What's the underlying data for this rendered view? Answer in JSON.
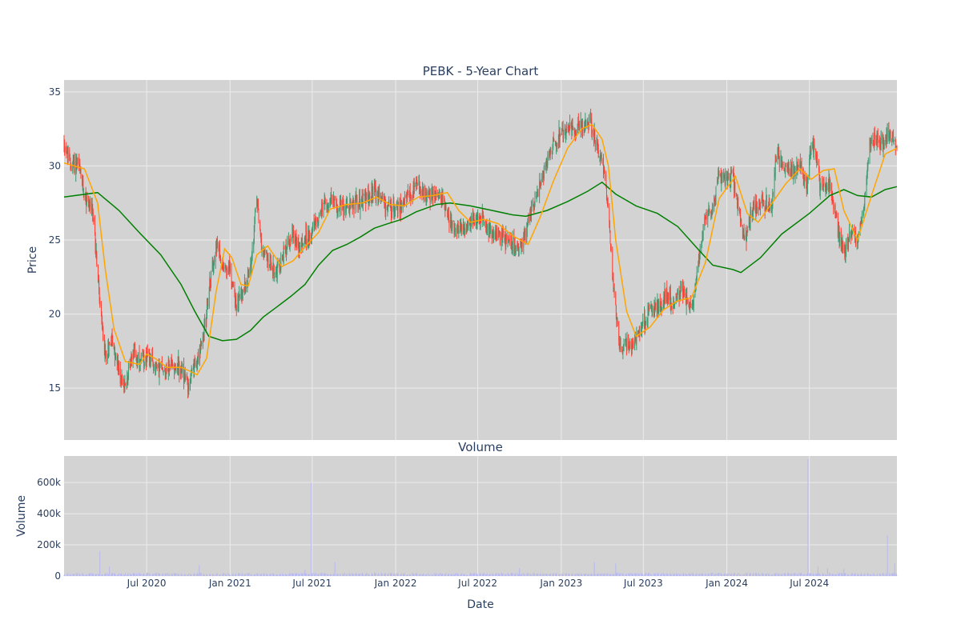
{
  "chart_data": [
    {
      "type": "candlestick",
      "title": "PEBK - 5-Year Chart",
      "ylabel": "Price",
      "ylim": [
        11.5,
        35.8
      ],
      "yticks": [
        15,
        20,
        25,
        30,
        35
      ],
      "xlim": [
        "2020-01-01",
        "2025-01-10"
      ],
      "grid": true,
      "legend": "none",
      "colors": {
        "plot_bg": "#d3d3d3",
        "grid": "#ececec",
        "up": "#3d9970",
        "down": "#ff4136",
        "ma_short": "#ffa500",
        "ma_long": "#008000"
      },
      "close_path": [
        [
          "2020-01-02",
          31.5
        ],
        [
          "2020-01-15",
          30.0
        ],
        [
          "2020-02-01",
          30.2
        ],
        [
          "2020-02-15",
          28.0
        ],
        [
          "2020-03-01",
          27.2
        ],
        [
          "2020-03-10",
          25.0
        ],
        [
          "2020-03-20",
          20.5
        ],
        [
          "2020-04-01",
          17.0
        ],
        [
          "2020-04-15",
          18.5
        ],
        [
          "2020-05-01",
          16.0
        ],
        [
          "2020-05-15",
          15.0
        ],
        [
          "2020-06-01",
          17.8
        ],
        [
          "2020-06-15",
          16.5
        ],
        [
          "2020-07-01",
          17.2
        ],
        [
          "2020-07-15",
          16.6
        ],
        [
          "2020-08-01",
          16.3
        ],
        [
          "2020-08-15",
          16.4
        ],
        [
          "2020-09-01",
          16.6
        ],
        [
          "2020-09-15",
          16.2
        ],
        [
          "2020-10-01",
          15.2
        ],
        [
          "2020-10-15",
          16.5
        ],
        [
          "2020-11-01",
          18.0
        ],
        [
          "2020-11-15",
          21.5
        ],
        [
          "2020-12-01",
          24.8
        ],
        [
          "2020-12-15",
          23.5
        ],
        [
          "2021-01-01",
          23.0
        ],
        [
          "2021-01-15",
          20.5
        ],
        [
          "2021-02-01",
          21.8
        ],
        [
          "2021-02-15",
          23.0
        ],
        [
          "2021-03-01",
          28.0
        ],
        [
          "2021-03-10",
          24.8
        ],
        [
          "2021-03-25",
          23.5
        ],
        [
          "2021-04-15",
          22.8
        ],
        [
          "2021-05-01",
          24.2
        ],
        [
          "2021-05-20",
          25.5
        ],
        [
          "2021-06-01",
          24.5
        ],
        [
          "2021-06-15",
          25.0
        ],
        [
          "2021-07-01",
          25.5
        ],
        [
          "2021-07-20",
          27.0
        ],
        [
          "2021-08-10",
          27.7
        ],
        [
          "2021-09-01",
          27.2
        ],
        [
          "2021-09-20",
          27.4
        ],
        [
          "2021-10-15",
          27.7
        ],
        [
          "2021-11-15",
          28.2
        ],
        [
          "2021-12-01",
          27.8
        ],
        [
          "2021-12-15",
          27.0
        ],
        [
          "2022-01-01",
          27.2
        ],
        [
          "2022-01-15",
          27.5
        ],
        [
          "2022-02-01",
          27.9
        ],
        [
          "2022-02-15",
          28.7
        ],
        [
          "2022-03-01",
          28.2
        ],
        [
          "2022-03-20",
          28.0
        ],
        [
          "2022-04-01",
          28.2
        ],
        [
          "2022-04-20",
          27.2
        ],
        [
          "2022-05-01",
          26.3
        ],
        [
          "2022-05-20",
          25.8
        ],
        [
          "2022-06-10",
          26.0
        ],
        [
          "2022-06-25",
          26.6
        ],
        [
          "2022-07-10",
          26.3
        ],
        [
          "2022-08-01",
          25.5
        ],
        [
          "2022-08-20",
          25.3
        ],
        [
          "2022-09-10",
          24.8
        ],
        [
          "2022-10-01",
          24.4
        ],
        [
          "2022-10-15",
          25.5
        ],
        [
          "2022-10-25",
          27.2
        ],
        [
          "2022-11-10",
          28.0
        ],
        [
          "2022-12-01",
          30.5
        ],
        [
          "2022-12-15",
          31.5
        ],
        [
          "2023-01-01",
          32.0
        ],
        [
          "2023-01-20",
          32.5
        ],
        [
          "2023-02-10",
          32.5
        ],
        [
          "2023-02-25",
          32.8
        ],
        [
          "2023-03-05",
          33.5
        ],
        [
          "2023-03-12",
          32.0
        ],
        [
          "2023-03-25",
          31.0
        ],
        [
          "2023-04-05",
          30.0
        ],
        [
          "2023-04-15",
          27.0
        ],
        [
          "2023-04-25",
          22.0
        ],
        [
          "2023-05-05",
          19.0
        ],
        [
          "2023-05-15",
          17.5
        ],
        [
          "2023-05-25",
          18.2
        ],
        [
          "2023-06-05",
          17.8
        ],
        [
          "2023-06-20",
          18.5
        ],
        [
          "2023-07-01",
          19.3
        ],
        [
          "2023-07-20",
          20.5
        ],
        [
          "2023-08-10",
          20.3
        ],
        [
          "2023-08-20",
          21.5
        ],
        [
          "2023-09-05",
          20.6
        ],
        [
          "2023-09-25",
          21.5
        ],
        [
          "2023-10-10",
          20.6
        ],
        [
          "2023-10-20",
          20.8
        ],
        [
          "2023-10-30",
          23.5
        ],
        [
          "2023-11-15",
          26.8
        ],
        [
          "2023-12-01",
          27.0
        ],
        [
          "2023-12-15",
          29.5
        ],
        [
          "2024-01-01",
          29.0
        ],
        [
          "2024-01-15",
          29.3
        ],
        [
          "2024-02-01",
          26.0
        ],
        [
          "2024-02-10",
          24.8
        ],
        [
          "2024-02-25",
          27.0
        ],
        [
          "2024-03-15",
          27.5
        ],
        [
          "2024-04-10",
          27.4
        ],
        [
          "2024-04-20",
          30.8
        ],
        [
          "2024-05-05",
          30.0
        ],
        [
          "2024-05-25",
          29.5
        ],
        [
          "2024-06-10",
          30.0
        ],
        [
          "2024-06-25",
          28.5
        ],
        [
          "2024-07-05",
          31.5
        ],
        [
          "2024-07-15",
          31.0
        ],
        [
          "2024-07-25",
          28.5
        ],
        [
          "2024-08-15",
          28.8
        ],
        [
          "2024-09-01",
          26.0
        ],
        [
          "2024-09-15",
          24.0
        ],
        [
          "2024-10-01",
          25.5
        ],
        [
          "2024-10-15",
          25.0
        ],
        [
          "2024-11-01",
          28.0
        ],
        [
          "2024-11-10",
          31.5
        ],
        [
          "2024-11-25",
          31.8
        ],
        [
          "2024-12-10",
          31.5
        ],
        [
          "2024-12-20",
          32.2
        ],
        [
          "2025-01-10",
          31.5
        ]
      ],
      "ma_long_path": [
        [
          "2020-01-01",
          27.9
        ],
        [
          "2020-03-15",
          28.2
        ],
        [
          "2020-05-01",
          27.0
        ],
        [
          "2020-06-15",
          25.5
        ],
        [
          "2020-08-01",
          24.0
        ],
        [
          "2020-09-15",
          22.0
        ],
        [
          "2020-10-15",
          20.2
        ],
        [
          "2020-11-15",
          18.5
        ],
        [
          "2020-12-15",
          18.2
        ],
        [
          "2021-01-15",
          18.3
        ],
        [
          "2021-02-15",
          18.9
        ],
        [
          "2021-03-15",
          19.8
        ],
        [
          "2021-04-15",
          20.5
        ],
        [
          "2021-05-15",
          21.2
        ],
        [
          "2021-06-15",
          22.0
        ],
        [
          "2021-07-15",
          23.3
        ],
        [
          "2021-08-15",
          24.3
        ],
        [
          "2021-09-15",
          24.7
        ],
        [
          "2021-10-15",
          25.2
        ],
        [
          "2021-11-15",
          25.8
        ],
        [
          "2021-12-15",
          26.1
        ],
        [
          "2022-01-15",
          26.4
        ],
        [
          "2022-02-15",
          26.9
        ],
        [
          "2022-04-01",
          27.4
        ],
        [
          "2022-05-01",
          27.5
        ],
        [
          "2022-06-15",
          27.3
        ],
        [
          "2022-08-01",
          27.0
        ],
        [
          "2022-09-15",
          26.7
        ],
        [
          "2022-10-15",
          26.6
        ],
        [
          "2022-12-01",
          27.0
        ],
        [
          "2023-01-15",
          27.6
        ],
        [
          "2023-03-01",
          28.3
        ],
        [
          "2023-04-01",
          28.9
        ],
        [
          "2023-05-01",
          28.1
        ],
        [
          "2023-06-15",
          27.3
        ],
        [
          "2023-08-01",
          26.8
        ],
        [
          "2023-09-15",
          25.9
        ],
        [
          "2023-11-01",
          24.3
        ],
        [
          "2023-12-01",
          23.3
        ],
        [
          "2024-01-15",
          23.0
        ],
        [
          "2024-02-01",
          22.8
        ],
        [
          "2024-03-15",
          23.8
        ],
        [
          "2024-05-01",
          25.4
        ],
        [
          "2024-07-01",
          26.8
        ],
        [
          "2024-08-15",
          28.0
        ],
        [
          "2024-09-15",
          28.4
        ],
        [
          "2024-10-15",
          28.0
        ],
        [
          "2024-11-15",
          27.9
        ],
        [
          "2024-12-15",
          28.4
        ],
        [
          "2025-01-10",
          28.6
        ]
      ],
      "ma_short_path": [
        [
          "2020-01-01",
          30.2
        ],
        [
          "2020-02-15",
          29.8
        ],
        [
          "2020-03-15",
          27.5
        ],
        [
          "2020-04-01",
          23.0
        ],
        [
          "2020-04-20",
          19.0
        ],
        [
          "2020-05-15",
          16.8
        ],
        [
          "2020-06-15",
          16.6
        ],
        [
          "2020-07-01",
          17.3
        ],
        [
          "2020-07-20",
          17.0
        ],
        [
          "2020-08-15",
          16.4
        ],
        [
          "2020-09-15",
          16.4
        ],
        [
          "2020-10-01",
          16.2
        ],
        [
          "2020-10-20",
          15.9
        ],
        [
          "2020-11-10",
          17.0
        ],
        [
          "2020-12-01",
          21.5
        ],
        [
          "2020-12-20",
          24.4
        ],
        [
          "2021-01-05",
          23.8
        ],
        [
          "2021-01-25",
          22.0
        ],
        [
          "2021-02-10",
          21.9
        ],
        [
          "2021-03-01",
          24.0
        ],
        [
          "2021-03-25",
          24.6
        ],
        [
          "2021-04-25",
          23.2
        ],
        [
          "2021-05-20",
          23.6
        ],
        [
          "2021-06-20",
          24.7
        ],
        [
          "2021-07-15",
          25.5
        ],
        [
          "2021-08-10",
          27.1
        ],
        [
          "2021-09-15",
          27.4
        ],
        [
          "2021-10-20",
          27.5
        ],
        [
          "2021-11-20",
          27.9
        ],
        [
          "2021-12-20",
          27.4
        ],
        [
          "2022-01-20",
          27.3
        ],
        [
          "2022-02-20",
          27.9
        ],
        [
          "2022-03-25",
          28.0
        ],
        [
          "2022-04-25",
          28.2
        ],
        [
          "2022-05-20",
          27.0
        ],
        [
          "2022-06-15",
          26.2
        ],
        [
          "2022-07-15",
          26.4
        ],
        [
          "2022-08-15",
          26.1
        ],
        [
          "2022-09-15",
          25.3
        ],
        [
          "2022-10-20",
          24.7
        ],
        [
          "2022-11-15",
          26.5
        ],
        [
          "2022-12-15",
          29.0
        ],
        [
          "2023-01-15",
          31.2
        ],
        [
          "2023-02-15",
          32.5
        ],
        [
          "2023-03-10",
          32.8
        ],
        [
          "2023-04-01",
          31.8
        ],
        [
          "2023-04-15",
          30.0
        ],
        [
          "2023-05-01",
          25.0
        ],
        [
          "2023-05-25",
          20.2
        ],
        [
          "2023-06-15",
          18.5
        ],
        [
          "2023-07-15",
          19.1
        ],
        [
          "2023-08-15",
          20.3
        ],
        [
          "2023-09-15",
          20.9
        ],
        [
          "2023-10-15",
          21.1
        ],
        [
          "2023-11-15",
          23.5
        ],
        [
          "2023-12-15",
          27.8
        ],
        [
          "2024-01-20",
          29.3
        ],
        [
          "2024-02-15",
          26.8
        ],
        [
          "2024-03-10",
          26.2
        ],
        [
          "2024-04-10",
          27.5
        ],
        [
          "2024-05-10",
          28.8
        ],
        [
          "2024-06-10",
          29.8
        ],
        [
          "2024-07-05",
          29.1
        ],
        [
          "2024-08-01",
          29.7
        ],
        [
          "2024-08-25",
          29.8
        ],
        [
          "2024-09-15",
          27.0
        ],
        [
          "2024-10-15",
          25.0
        ],
        [
          "2024-11-15",
          28.0
        ],
        [
          "2024-12-15",
          30.8
        ],
        [
          "2025-01-10",
          31.2
        ]
      ],
      "volatility_note_free": true
    },
    {
      "type": "bar",
      "title": "Volume",
      "ylabel": "Volume",
      "xlabel": "Date",
      "ylim": [
        0,
        770000
      ],
      "yticks": [
        0,
        200000,
        400000,
        600000
      ],
      "ytick_labels": [
        "0",
        "200k",
        "400k",
        "600k"
      ],
      "x_ticks": [
        "2020-07-01",
        "2021-01-01",
        "2021-07-01",
        "2022-01-01",
        "2022-07-01",
        "2023-01-01",
        "2023-07-01",
        "2024-01-01",
        "2024-07-01"
      ],
      "x_tick_labels": [
        "Jul 2020",
        "Jan 2021",
        "Jul 2021",
        "Jan 2022",
        "Jul 2022",
        "Jan 2023",
        "Jul 2023",
        "Jan 2024",
        "Jul 2024"
      ],
      "colors": {
        "bar": "#b8b8f0"
      },
      "spikes": [
        [
          "2020-03-20",
          160000
        ],
        [
          "2020-04-10",
          60000
        ],
        [
          "2020-10-25",
          70000
        ],
        [
          "2021-06-29",
          600000
        ],
        [
          "2021-06-15",
          40000
        ],
        [
          "2021-08-20",
          90000
        ],
        [
          "2022-10-01",
          50000
        ],
        [
          "2023-03-15",
          90000
        ],
        [
          "2023-05-01",
          80000
        ],
        [
          "2024-06-28",
          750000
        ],
        [
          "2024-07-20",
          60000
        ],
        [
          "2024-08-10",
          50000
        ],
        [
          "2024-09-15",
          45000
        ],
        [
          "2024-12-20",
          260000
        ],
        [
          "2025-01-05",
          80000
        ]
      ]
    }
  ]
}
